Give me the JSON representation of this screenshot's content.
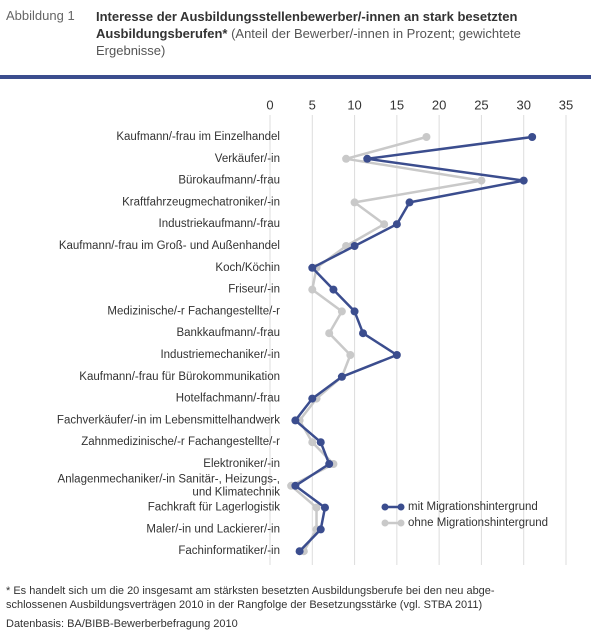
{
  "label": "Abbildung 1",
  "chart_data": {
    "type": "line",
    "orientation": "horizontal",
    "title": "Interesse der Ausbildungsstellenbewerber/-innen an stark besetzten Ausbildungsberufen*",
    "subtitle": "(Anteil der Bewerber/-innen in Prozent; gewichtete Ergebnisse)",
    "categories": [
      "Kaufmann/-frau im Einzelhandel",
      "Verkäufer/-in",
      "Bürokaufmann/-frau",
      "Kraftfahrzeugmechatroniker/-in",
      "Industriekaufmann/-frau",
      "Kaufmann/-frau im Groß- und Außenhandel",
      "Koch/Köchin",
      "Friseur/-in",
      "Medizinische/-r Fachangestellte/-r",
      "Bankkaufmann/-frau",
      "Industriemechaniker/-in",
      "Kaufmann/-frau für Bürokommunikation",
      "Hotelfachmann/-frau",
      "Fachverkäufer/-in im Lebensmittelhandwerk",
      "Zahnmedizinische/-r Fachangestellte/-r",
      "Elektroniker/-in",
      "Anlagenmechaniker/-in Sanitär-, Heizungs-,\nund Klimatechnik",
      "Fachkraft für Lagerlogistik",
      "Maler/-in und Lackierer/-in",
      "Fachinformatiker/-in"
    ],
    "series": [
      {
        "name": "ohne Migrationshintergrund",
        "color": "#c9c9c9",
        "values": [
          18.5,
          9,
          25,
          10,
          13.5,
          9,
          5.5,
          5,
          8.5,
          7,
          9.5,
          8.5,
          5.5,
          3.5,
          5,
          7.5,
          2.5,
          5.5,
          5.5,
          4
        ]
      },
      {
        "name": "mit Migrationshintergrund",
        "color": "#3b4d8e",
        "values": [
          31,
          11.5,
          30,
          16.5,
          15,
          10,
          5,
          7.5,
          10,
          11,
          15,
          8.5,
          5,
          3,
          6,
          7,
          3,
          6.5,
          6,
          3.5
        ]
      }
    ],
    "xlim": [
      0,
      35
    ],
    "xticks": [
      0,
      5,
      10,
      15,
      20,
      25,
      30,
      35
    ],
    "grid": true,
    "legend": "lower right",
    "footnote": "* Es handelt sich um die 20 insgesamt am stärksten besetzten Ausbildungsberufe bei den neu abge-\nschlossenen Ausbildungsverträgen 2010 in der Rangfolge der Besetzungsstärke (vgl. STBA 2011)",
    "source": "Datenbasis: BA/BIBB-Bewerberbefragung 2010"
  }
}
